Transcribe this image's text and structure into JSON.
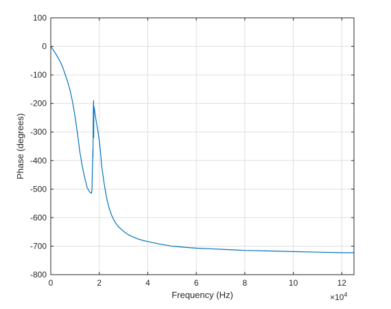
{
  "chart_data": {
    "type": "line",
    "title": "",
    "xlabel": "Frequency (Hz)",
    "ylabel": "Phase (degrees)",
    "x_multiplier_label": "×10",
    "x_multiplier_exponent": "4",
    "xlim": [
      0,
      125000
    ],
    "ylim": [
      -800,
      100
    ],
    "grid": true,
    "x_ticks": [
      0,
      20000,
      40000,
      60000,
      80000,
      100000,
      120000
    ],
    "x_tick_labels": [
      "0",
      "2",
      "4",
      "6",
      "8",
      "10",
      "12"
    ],
    "y_ticks": [
      100,
      0,
      -100,
      -200,
      -300,
      -400,
      -500,
      -600,
      -700,
      -800
    ],
    "y_tick_labels": [
      "100",
      "0",
      "-100",
      "-200",
      "-300",
      "-400",
      "-500",
      "-600",
      "-700",
      "-800"
    ],
    "line_color": "#0072BD",
    "series": [
      {
        "x": [
          0,
          1000,
          2000,
          3000,
          4000,
          5000,
          6000,
          7000,
          8000,
          9000,
          10000,
          11000,
          12000,
          13000,
          14000,
          15000,
          16000,
          16800,
          17000,
          17200,
          17300,
          17350,
          17400,
          17500,
          17550,
          17600,
          17650,
          17700,
          17750,
          17800,
          17900,
          18000,
          18500,
          19000,
          19500,
          20000,
          20500,
          21000,
          22000,
          23000,
          24000,
          25000,
          26000,
          27000,
          28000,
          30000,
          32000,
          34000,
          36000,
          38000,
          40000,
          45000,
          50000,
          55000,
          60000,
          65000,
          70000,
          75000,
          80000,
          90000,
          100000,
          110000,
          120000,
          125000
        ],
        "y": [
          0,
          -12,
          -25,
          -40,
          -55,
          -75,
          -100,
          -125,
          -155,
          -195,
          -245,
          -305,
          -370,
          -420,
          -460,
          -495,
          -510,
          -515,
          -500,
          -420,
          -400,
          -360,
          -390,
          -260,
          -220,
          -200,
          -190,
          -320,
          -250,
          -210,
          -215,
          -220,
          -250,
          -275,
          -300,
          -330,
          -370,
          -420,
          -480,
          -530,
          -565,
          -590,
          -608,
          -622,
          -633,
          -648,
          -660,
          -668,
          -675,
          -680,
          -684,
          -693,
          -700,
          -704,
          -707,
          -709,
          -711,
          -713,
          -715,
          -717,
          -719,
          -721,
          -723,
          -723
        ]
      }
    ]
  }
}
